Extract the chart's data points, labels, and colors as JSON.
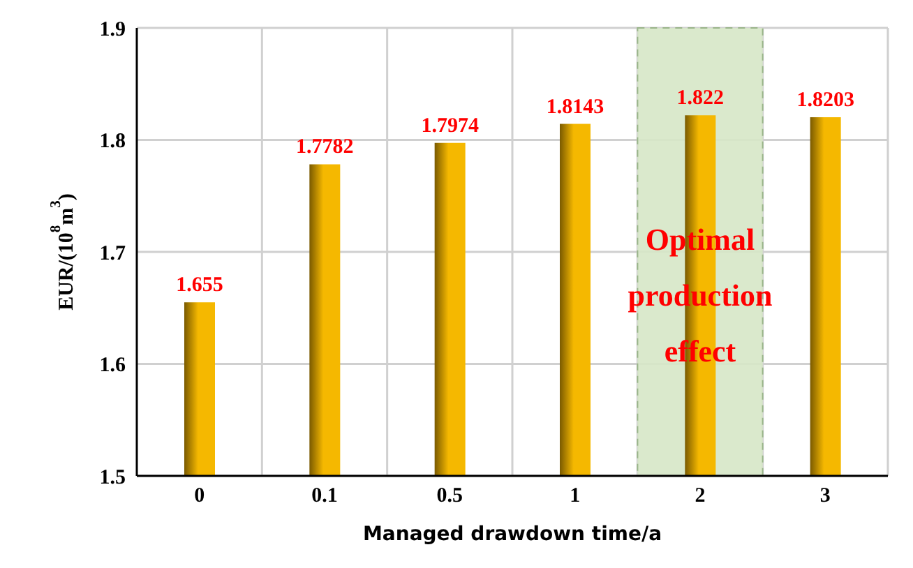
{
  "chart_data": {
    "type": "bar",
    "xlabel": "Managed drawdown time/a",
    "ylabel": "EUR/(10$^{8}$m$^{3}$)",
    "categories": [
      "0",
      "0.1",
      "0.5",
      "1",
      "2",
      "3"
    ],
    "values": [
      1.655,
      1.7782,
      1.7974,
      1.8143,
      1.822,
      1.8203
    ],
    "color": "#f5b800",
    "ylim": [
      1.5,
      1.9
    ],
    "yticks": [
      1.5,
      1.6,
      1.7,
      1.8,
      1.9
    ],
    "data_labels": true,
    "grid": true,
    "bands": [
      {
        "axis": "x",
        "from": "2",
        "to": "2",
        "label": "Optimal production effect",
        "color": "#d6e7c6"
      }
    ]
  }
}
